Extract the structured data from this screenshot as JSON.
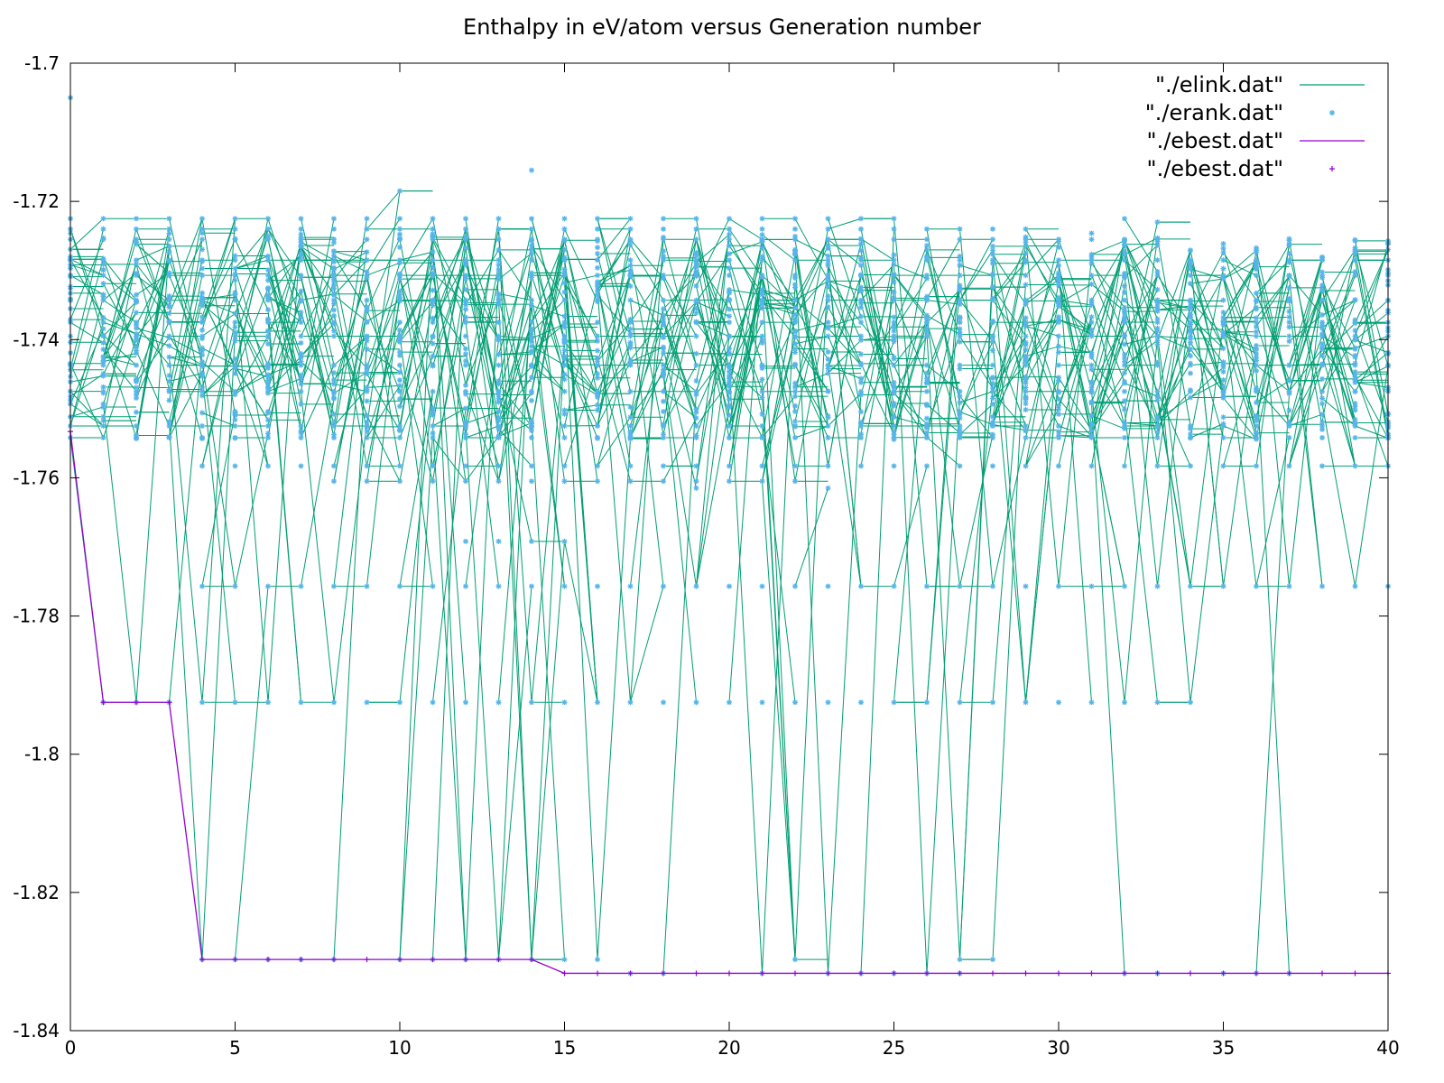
{
  "chart_data": {
    "type": "line",
    "title": "Enthalpy in eV/atom versus Generation number",
    "xlabel": "",
    "ylabel": "",
    "xlim": [
      0,
      40
    ],
    "ylim": [
      -1.84,
      -1.7
    ],
    "xticks": [
      0,
      5,
      10,
      15,
      20,
      25,
      30,
      35,
      40
    ],
    "xtick_labels": [
      "0",
      "5",
      "10",
      "15",
      "20",
      "25",
      "30",
      "35",
      "40"
    ],
    "yticks": [
      -1.84,
      -1.82,
      -1.8,
      -1.78,
      -1.76,
      -1.74,
      -1.72,
      -1.7
    ],
    "ytick_labels": [
      "-1.84",
      "-1.82",
      "-1.8",
      "-1.78",
      "-1.76",
      "-1.74",
      "-1.72",
      "-1.7"
    ],
    "grid": false,
    "legend_position": "top-right",
    "legend": [
      {
        "label": "\"./elink.dat\"",
        "style": "line",
        "color": "#009e73"
      },
      {
        "label": "\"./erank.dat\"",
        "style": "points",
        "marker": "asterisk",
        "color": "#56b4e9"
      },
      {
        "label": "\"./ebest.dat\"",
        "style": "line",
        "color": "#9400d3"
      },
      {
        "label": "\"./ebest.dat\"",
        "style": "points",
        "marker": "plus",
        "color": "#9400d3"
      }
    ],
    "ebest": {
      "x": [
        0,
        1,
        2,
        3,
        4,
        5,
        6,
        7,
        8,
        9,
        10,
        11,
        12,
        13,
        14,
        15,
        16,
        17,
        18,
        19,
        20,
        21,
        22,
        23,
        24,
        25,
        26,
        27,
        28,
        29,
        30,
        31,
        32,
        33,
        34,
        35,
        36,
        37,
        38,
        39,
        40
      ],
      "y": [
        -1.7533,
        -1.7925,
        -1.7925,
        -1.7925,
        -1.8297,
        -1.8297,
        -1.8297,
        -1.8297,
        -1.8297,
        -1.8297,
        -1.8297,
        -1.8297,
        -1.8297,
        -1.8297,
        -1.8297,
        -1.8317,
        -1.8317,
        -1.8317,
        -1.8317,
        -1.8317,
        -1.8317,
        -1.8317,
        -1.8317,
        -1.8317,
        -1.8317,
        -1.8317,
        -1.8317,
        -1.8317,
        -1.8317,
        -1.8317,
        -1.8317,
        -1.8317,
        -1.8317,
        -1.8317,
        -1.8317,
        -1.8317,
        -1.8317,
        -1.8317,
        -1.8317,
        -1.8317,
        -1.8317
      ]
    },
    "erank_levels": {
      "y": [
        -1.7925,
        -1.7757,
        -1.7692,
        -1.7605,
        -1.7583,
        -1.7542,
        -1.7525,
        -1.7475,
        -1.7437,
        -1.7395,
        -1.7375,
        -1.7343,
        -1.7307,
        -1.7285,
        -1.7255,
        -1.724,
        -1.7225
      ],
      "first_gen": [
        1,
        4,
        12,
        8,
        4,
        0,
        0,
        0,
        0,
        0,
        0,
        0,
        0,
        0,
        0,
        0,
        0
      ],
      "last_gen": [
        34,
        40,
        15,
        22,
        40,
        40,
        40,
        40,
        40,
        40,
        40,
        40,
        40,
        40,
        32,
        29,
        25
      ]
    },
    "erank_extremes": {
      "x": [
        0,
        14,
        10,
        19,
        23,
        28,
        32,
        33
      ],
      "y": [
        -1.705,
        -1.7155,
        -1.7185,
        -1.7615,
        -1.7615,
        -1.7265,
        -1.7225,
        -1.723
      ]
    },
    "low_levels": {
      "y": [
        -1.8297,
        -1.8317
      ],
      "first_gen": [
        4,
        15
      ],
      "last_gen": [
        29,
        40
      ]
    }
  }
}
